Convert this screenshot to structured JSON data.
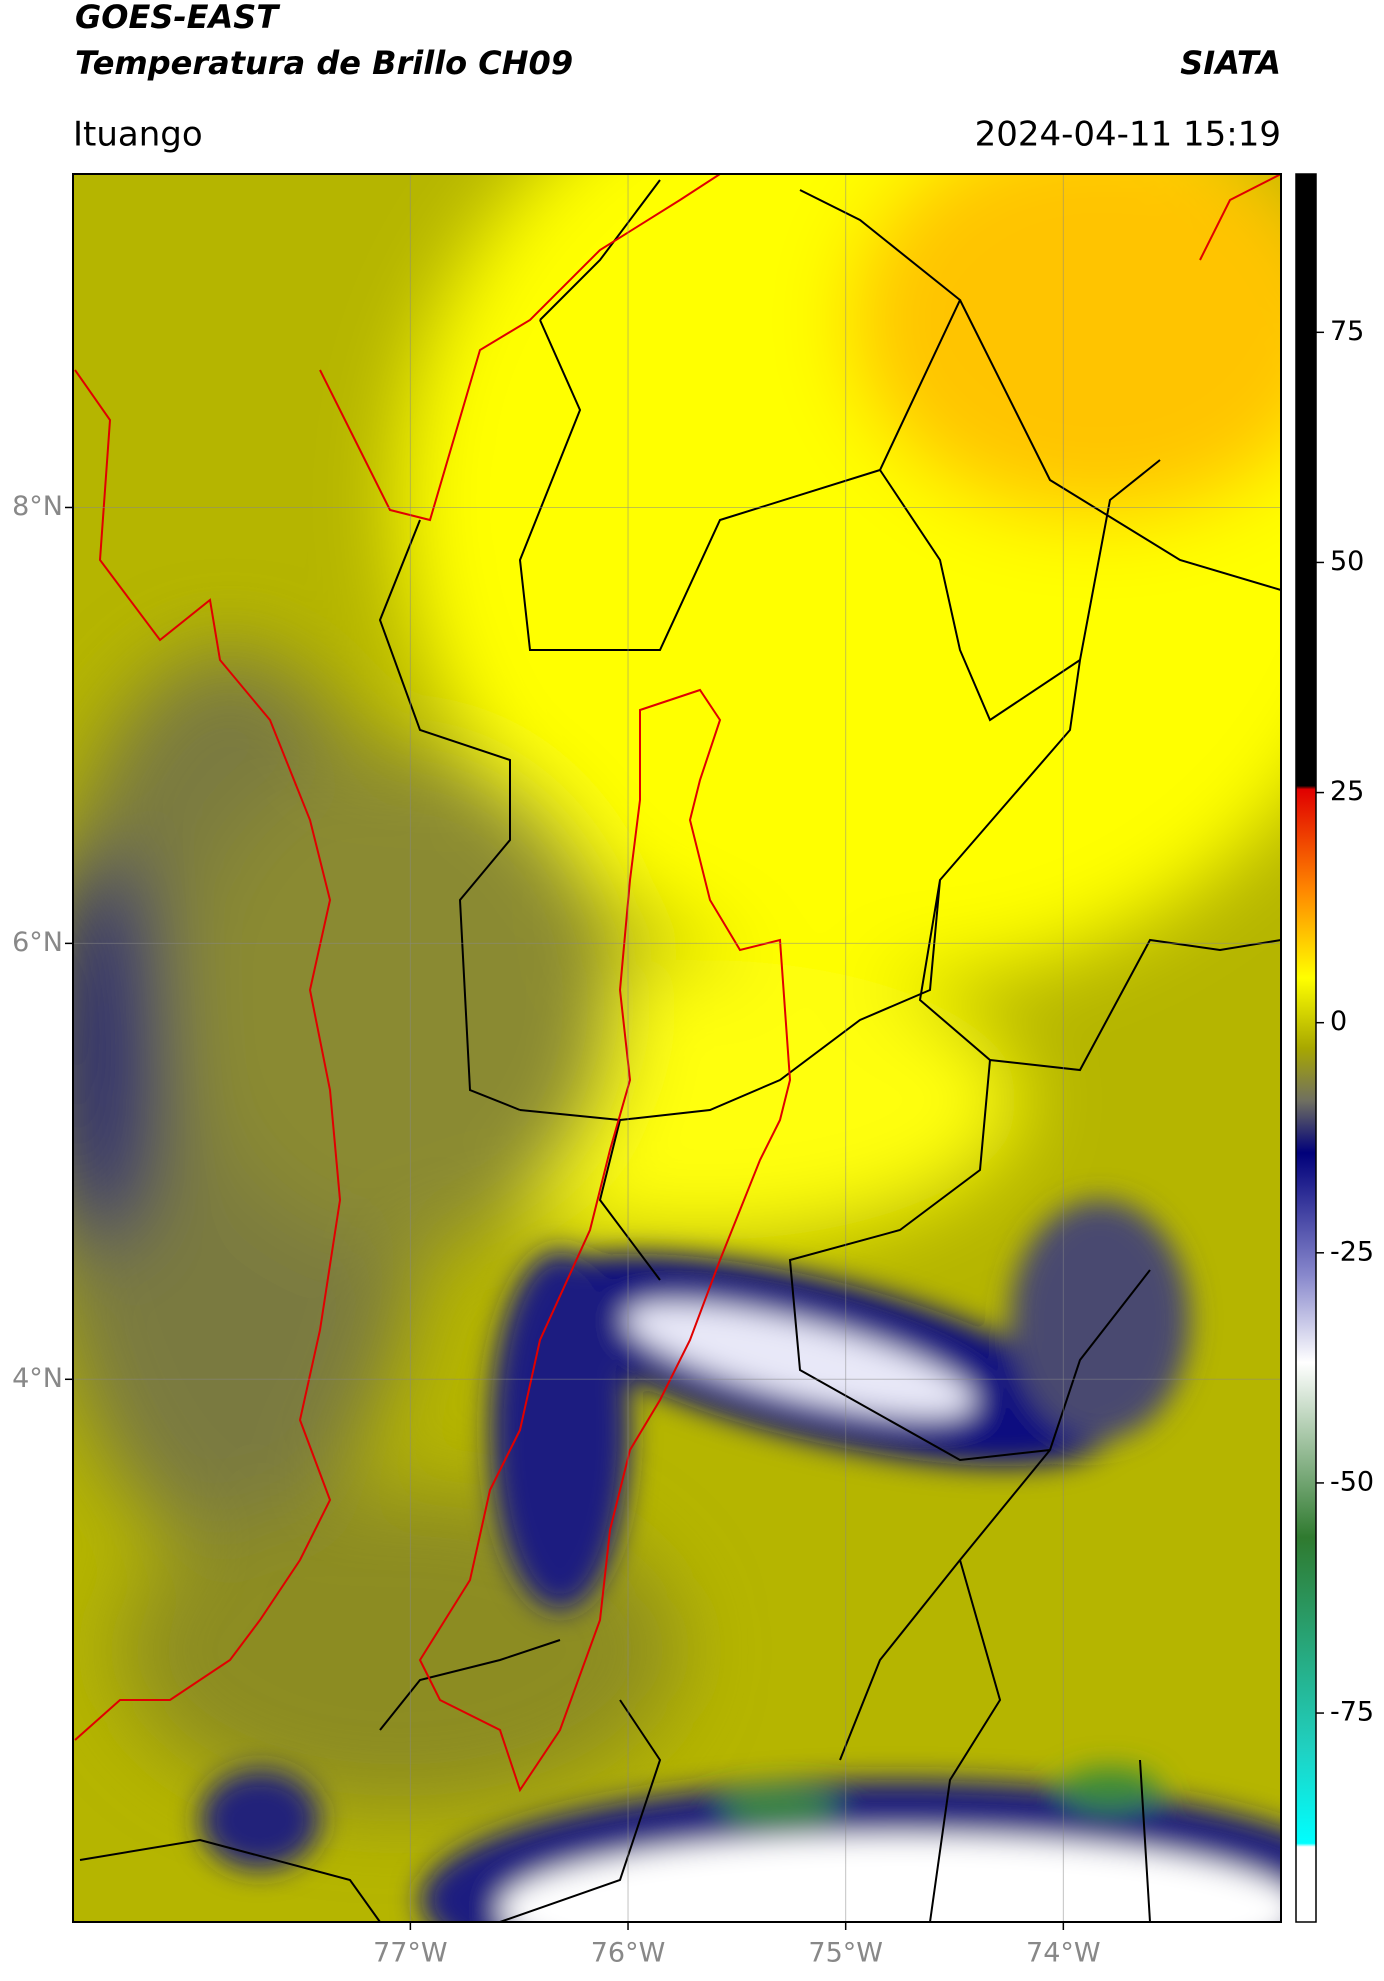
{
  "map": {
    "title": "GOES-EAST",
    "subtitle": "Temperatura de Brillo CH09",
    "brand": "SIATA",
    "location": "Ituango",
    "datetime": "2024-04-11 15:19",
    "xlim": [
      -78.55,
      -73.0
    ],
    "ylim": [
      1.51,
      9.53
    ],
    "xticks": [
      {
        "value": -77,
        "label": "77°W"
      },
      {
        "value": -76,
        "label": "76°W"
      },
      {
        "value": -75,
        "label": "75°W"
      },
      {
        "value": -74,
        "label": "74°W"
      }
    ],
    "yticks": [
      {
        "value": 8,
        "label": "8°N"
      },
      {
        "value": 6,
        "label": "6°N"
      },
      {
        "value": 4,
        "label": "4°N"
      }
    ],
    "grid": true,
    "colorbar": {
      "lim": [
        -97.7,
        92.2
      ],
      "ticks": [
        75,
        50,
        25,
        0,
        -25,
        -50,
        -75
      ]
    }
  }
}
